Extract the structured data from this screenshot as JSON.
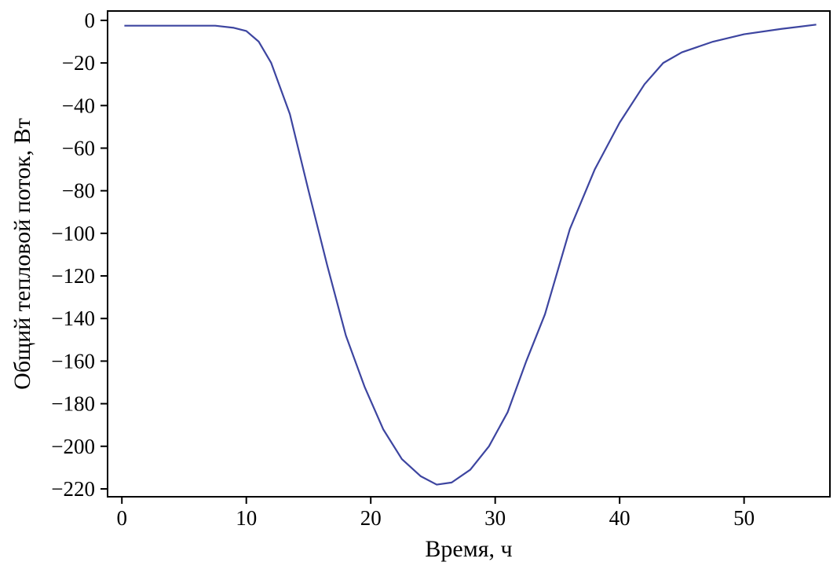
{
  "chart_data": {
    "type": "line",
    "xlabel": "Время, ч",
    "ylabel": "Общий тепловой поток, Вт",
    "x": [
      0.2,
      7.5,
      9,
      10,
      11,
      12,
      13.5,
      15,
      16.5,
      18,
      19.5,
      21,
      22.5,
      24,
      25.3,
      26.5,
      28,
      29.5,
      31,
      32.5,
      34,
      36,
      38,
      40,
      42,
      43.5,
      45,
      47.5,
      50,
      53,
      55.8
    ],
    "series": [
      {
        "name": "Общий тепловой поток",
        "color": "#3d45a0",
        "values": [
          -2.5,
          -2.5,
          -3.5,
          -5,
          -10,
          -20,
          -44,
          -80,
          -115,
          -148,
          -172,
          -192,
          -206,
          -214,
          -218,
          -217,
          -211,
          -200,
          -184,
          -160,
          -138,
          -98,
          -70,
          -48,
          -30,
          -20,
          -15,
          -10,
          -6.5,
          -4,
          -2
        ]
      }
    ],
    "xlim": [
      -1.15,
      56.9
    ],
    "ylim": [
      -223.7,
      4.4
    ],
    "xticks": [
      0,
      10,
      20,
      30,
      40,
      50
    ],
    "yticks": [
      0,
      {
        "value": -20,
        "label": "−20"
      },
      {
        "value": -40,
        "label": "−40"
      },
      {
        "value": -60,
        "label": "−60"
      },
      {
        "value": -80,
        "label": "−80"
      },
      {
        "value": -100,
        "label": "−100"
      },
      {
        "value": -120,
        "label": "−120"
      },
      {
        "value": -140,
        "label": "−140"
      },
      {
        "value": -160,
        "label": "−160"
      },
      {
        "value": -180,
        "label": "−180"
      },
      {
        "value": -200,
        "label": "−200"
      },
      {
        "value": -220,
        "label": "−220"
      }
    ]
  }
}
